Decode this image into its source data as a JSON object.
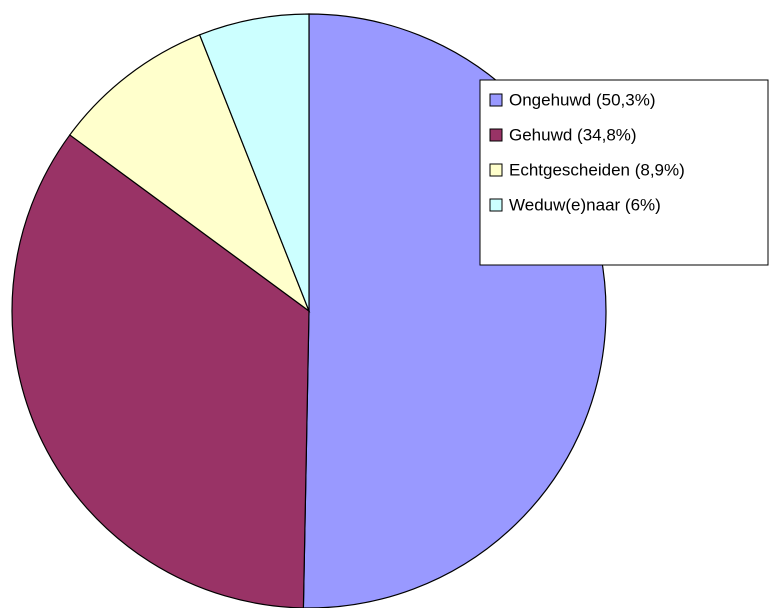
{
  "chart_data": {
    "type": "pie",
    "categories": [
      "Ongehuwd (50,3%)",
      "Gehuwd (34,8%)",
      "Echtgescheiden (8,9%)",
      "Weduw(e)naar (6%)"
    ],
    "values": [
      50.3,
      34.8,
      8.9,
      6
    ],
    "colors": [
      "#9999ff",
      "#993366",
      "#ffffcc",
      "#ccffff"
    ],
    "legend": "upper right"
  }
}
